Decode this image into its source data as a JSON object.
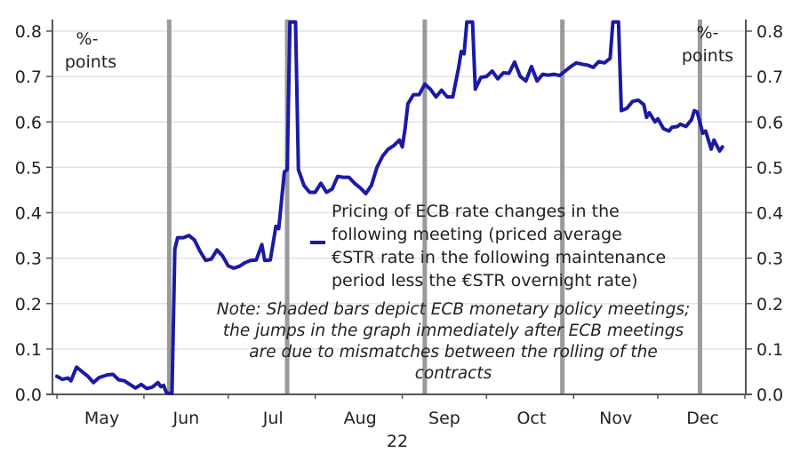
{
  "chart_data": {
    "type": "line",
    "title": "",
    "xlabel": "22",
    "ylabel": "%-points",
    "y_unit_left": [
      "%-",
      "points"
    ],
    "y_unit_right": [
      "%-",
      "points"
    ],
    "ylim": [
      0.0,
      0.8
    ],
    "yticks": [
      "0.0",
      "0.1",
      "0.2",
      "0.3",
      "0.4",
      "0.5",
      "0.6",
      "0.7",
      "0.8"
    ],
    "ytick_values": [
      0.0,
      0.1,
      0.2,
      0.3,
      0.4,
      0.5,
      0.6,
      0.7,
      0.8
    ],
    "xlim": [
      "2022-04-30",
      "2022-12-31"
    ],
    "month_ticks": [
      "2022-04-30",
      "2022-05-31",
      "2022-06-30",
      "2022-07-31",
      "2022-08-31",
      "2022-09-30",
      "2022-10-31",
      "2022-11-30",
      "2022-12-31"
    ],
    "month_labels": [
      {
        "label": "May",
        "date": "2022-05-16"
      },
      {
        "label": "Jun",
        "date": "2022-06-15"
      },
      {
        "label": "Jul",
        "date": "2022-07-16"
      },
      {
        "label": "Aug",
        "date": "2022-08-16"
      },
      {
        "label": "Sep",
        "date": "2022-09-15"
      },
      {
        "label": "Oct",
        "date": "2022-10-16"
      },
      {
        "label": "Nov",
        "date": "2022-11-15"
      },
      {
        "label": "Dec",
        "date": "2022-12-16"
      }
    ],
    "year_label": "22",
    "grid": true,
    "meeting_bars": [
      "2022-06-09",
      "2022-07-21",
      "2022-09-08",
      "2022-10-27",
      "2022-12-15"
    ],
    "colors": {
      "line": "#1a1aa6",
      "meeting_bar": "#8f8f8f",
      "grid": "#e3e3e8",
      "axis": "#555555"
    },
    "legend": {
      "placement": "center",
      "lines": [
        "Pricing of ECB rate changes in the",
        "following meeting (priced average",
        "€STR rate in the following maintenance",
        "period less the €STR overnight rate)"
      ]
    },
    "note": {
      "lines": [
        "Note: Shaded bars depict ECB monetary policy meetings;",
        "the jumps in the graph immediately after ECB meetings",
        "are due to mismatches between the rolling of the",
        "contracts"
      ]
    },
    "series": [
      {
        "name": "Pricing of ECB rate changes in the following meeting",
        "points": [
          [
            "2022-04-30",
            0.04
          ],
          [
            "2022-05-02",
            0.033
          ],
          [
            "2022-05-04",
            0.036
          ],
          [
            "2022-05-05",
            0.03
          ],
          [
            "2022-05-07",
            0.06
          ],
          [
            "2022-05-09",
            0.05
          ],
          [
            "2022-05-11",
            0.04
          ],
          [
            "2022-05-13",
            0.026
          ],
          [
            "2022-05-15",
            0.037
          ],
          [
            "2022-05-18",
            0.043
          ],
          [
            "2022-05-20",
            0.044
          ],
          [
            "2022-05-22",
            0.032
          ],
          [
            "2022-05-24",
            0.03
          ],
          [
            "2022-05-26",
            0.022
          ],
          [
            "2022-05-28",
            0.014
          ],
          [
            "2022-05-30",
            0.022
          ],
          [
            "2022-06-01",
            0.013
          ],
          [
            "2022-06-03",
            0.016
          ],
          [
            "2022-06-05",
            0.026
          ],
          [
            "2022-06-06",
            0.017
          ],
          [
            "2022-06-07",
            0.02
          ],
          [
            "2022-06-08",
            0.004
          ],
          [
            "2022-06-09",
            0.002
          ],
          [
            "2022-06-10",
            0.002
          ],
          [
            "2022-06-11",
            0.32
          ],
          [
            "2022-06-12",
            0.345
          ],
          [
            "2022-06-14",
            0.345
          ],
          [
            "2022-06-16",
            0.35
          ],
          [
            "2022-06-18",
            0.34
          ],
          [
            "2022-06-20",
            0.315
          ],
          [
            "2022-06-22",
            0.295
          ],
          [
            "2022-06-24",
            0.298
          ],
          [
            "2022-06-26",
            0.318
          ],
          [
            "2022-06-28",
            0.305
          ],
          [
            "2022-06-30",
            0.283
          ],
          [
            "2022-07-02",
            0.278
          ],
          [
            "2022-07-04",
            0.282
          ],
          [
            "2022-07-06",
            0.29
          ],
          [
            "2022-07-08",
            0.295
          ],
          [
            "2022-07-10",
            0.296
          ],
          [
            "2022-07-12",
            0.33
          ],
          [
            "2022-07-13",
            0.295
          ],
          [
            "2022-07-15",
            0.296
          ],
          [
            "2022-07-17",
            0.37
          ],
          [
            "2022-07-18",
            0.365
          ],
          [
            "2022-07-20",
            0.49
          ],
          [
            "2022-07-21",
            0.495
          ],
          [
            "2022-07-22",
            0.82
          ],
          [
            "2022-07-24",
            0.82
          ],
          [
            "2022-07-25",
            0.495
          ],
          [
            "2022-07-27",
            0.46
          ],
          [
            "2022-07-29",
            0.445
          ],
          [
            "2022-07-31",
            0.445
          ],
          [
            "2022-08-02",
            0.465
          ],
          [
            "2022-08-04",
            0.445
          ],
          [
            "2022-08-06",
            0.452
          ],
          [
            "2022-08-08",
            0.48
          ],
          [
            "2022-08-10",
            0.478
          ],
          [
            "2022-08-12",
            0.478
          ],
          [
            "2022-08-14",
            0.465
          ],
          [
            "2022-08-16",
            0.455
          ],
          [
            "2022-08-18",
            0.442
          ],
          [
            "2022-08-20",
            0.46
          ],
          [
            "2022-08-22",
            0.5
          ],
          [
            "2022-08-24",
            0.525
          ],
          [
            "2022-08-26",
            0.54
          ],
          [
            "2022-08-28",
            0.548
          ],
          [
            "2022-08-30",
            0.56
          ],
          [
            "2022-08-31",
            0.545
          ],
          [
            "2022-09-01",
            0.585
          ],
          [
            "2022-09-02",
            0.64
          ],
          [
            "2022-09-04",
            0.66
          ],
          [
            "2022-09-06",
            0.66
          ],
          [
            "2022-09-08",
            0.683
          ],
          [
            "2022-09-10",
            0.672
          ],
          [
            "2022-09-12",
            0.655
          ],
          [
            "2022-09-14",
            0.67
          ],
          [
            "2022-09-16",
            0.655
          ],
          [
            "2022-09-18",
            0.655
          ],
          [
            "2022-09-20",
            0.718
          ],
          [
            "2022-09-21",
            0.755
          ],
          [
            "2022-09-22",
            0.75
          ],
          [
            "2022-09-23",
            0.82
          ],
          [
            "2022-09-25",
            0.82
          ],
          [
            "2022-09-26",
            0.672
          ],
          [
            "2022-09-28",
            0.698
          ],
          [
            "2022-09-30",
            0.7
          ],
          [
            "2022-10-02",
            0.712
          ],
          [
            "2022-10-04",
            0.695
          ],
          [
            "2022-10-06",
            0.708
          ],
          [
            "2022-10-08",
            0.707
          ],
          [
            "2022-10-10",
            0.732
          ],
          [
            "2022-10-12",
            0.7
          ],
          [
            "2022-10-14",
            0.69
          ],
          [
            "2022-10-16",
            0.722
          ],
          [
            "2022-10-18",
            0.69
          ],
          [
            "2022-10-20",
            0.705
          ],
          [
            "2022-10-22",
            0.703
          ],
          [
            "2022-10-24",
            0.705
          ],
          [
            "2022-10-26",
            0.702
          ],
          [
            "2022-10-28",
            0.712
          ],
          [
            "2022-10-30",
            0.722
          ],
          [
            "2022-11-01",
            0.73
          ],
          [
            "2022-11-03",
            0.727
          ],
          [
            "2022-11-05",
            0.725
          ],
          [
            "2022-11-07",
            0.72
          ],
          [
            "2022-11-09",
            0.733
          ],
          [
            "2022-11-11",
            0.73
          ],
          [
            "2022-11-13",
            0.74
          ],
          [
            "2022-11-14",
            0.82
          ],
          [
            "2022-11-16",
            0.82
          ],
          [
            "2022-11-17",
            0.625
          ],
          [
            "2022-11-19",
            0.63
          ],
          [
            "2022-11-21",
            0.645
          ],
          [
            "2022-11-23",
            0.648
          ],
          [
            "2022-11-25",
            0.638
          ],
          [
            "2022-11-26",
            0.61
          ],
          [
            "2022-11-27",
            0.62
          ],
          [
            "2022-11-29",
            0.6
          ],
          [
            "2022-11-30",
            0.607
          ],
          [
            "2022-12-02",
            0.585
          ],
          [
            "2022-12-04",
            0.58
          ],
          [
            "2022-12-05",
            0.588
          ],
          [
            "2022-12-07",
            0.59
          ],
          [
            "2022-12-08",
            0.595
          ],
          [
            "2022-12-10",
            0.59
          ],
          [
            "2022-12-12",
            0.605
          ],
          [
            "2022-12-13",
            0.625
          ],
          [
            "2022-12-14",
            0.622
          ],
          [
            "2022-12-16",
            0.575
          ],
          [
            "2022-12-17",
            0.58
          ],
          [
            "2022-12-19",
            0.54
          ],
          [
            "2022-12-20",
            0.56
          ],
          [
            "2022-12-22",
            0.536
          ],
          [
            "2022-12-23",
            0.545
          ]
        ]
      }
    ]
  }
}
